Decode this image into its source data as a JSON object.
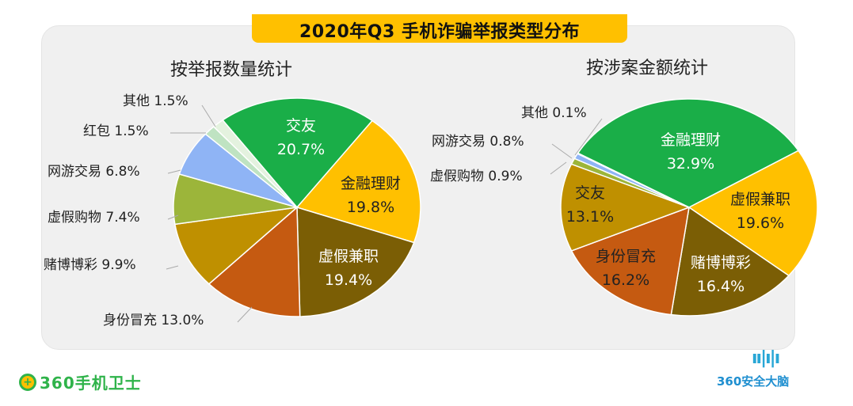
{
  "title": "2020年Q3 手机诈骗举报类型分布",
  "logos": {
    "left": "360手机卫士",
    "right": "360安全大脑",
    "right_icon": "ıı|ı|ı"
  },
  "chart_data": [
    {
      "type": "pie",
      "title": "按举报数量统计",
      "unit": "%",
      "slices": [
        {
          "name": "交友",
          "value": 20.7,
          "label": "20.7%",
          "color": "#1aae48"
        },
        {
          "name": "金融理财",
          "value": 19.8,
          "label": "19.8%",
          "color": "#ffc000"
        },
        {
          "name": "虚假兼职",
          "value": 19.4,
          "label": "19.4%",
          "color": "#7b5e05"
        },
        {
          "name": "身份冒充",
          "value": 13.0,
          "label": "13.0%",
          "color": "#c55a11"
        },
        {
          "name": "赌博博彩",
          "value": 9.9,
          "label": "9.9%",
          "color": "#bf9000"
        },
        {
          "name": "虚假购物",
          "value": 7.4,
          "label": "7.4%",
          "color": "#9cb53a"
        },
        {
          "name": "网游交易",
          "value": 6.8,
          "label": "6.8%",
          "color": "#8fb4f5"
        },
        {
          "name": "红包",
          "value": 1.5,
          "label": "1.5%",
          "color": "#bfe3c2"
        },
        {
          "name": "其他",
          "value": 1.5,
          "label": "1.5%",
          "color": "#e4f2df"
        }
      ]
    },
    {
      "type": "pie",
      "title": "按涉案金额统计",
      "unit": "%",
      "slices": [
        {
          "name": "金融理财",
          "value": 32.9,
          "label": "32.9%",
          "color": "#1aae48"
        },
        {
          "name": "虚假兼职",
          "value": 19.6,
          "label": "19.6%",
          "color": "#ffc000"
        },
        {
          "name": "赌博博彩",
          "value": 16.4,
          "label": "16.4%",
          "color": "#7b5e05"
        },
        {
          "name": "身份冒充",
          "value": 16.2,
          "label": "16.2%",
          "color": "#c55a11"
        },
        {
          "name": "交友",
          "value": 13.1,
          "label": "13.1%",
          "color": "#bf9000"
        },
        {
          "name": "虚假购物",
          "value": 0.9,
          "label": "0.9%",
          "color": "#9cb53a"
        },
        {
          "name": "网游交易",
          "value": 0.8,
          "label": "0.8%",
          "color": "#8fb4f5"
        },
        {
          "name": "其他",
          "value": 0.1,
          "label": "0.1%",
          "color": "#bfe3c2"
        }
      ]
    }
  ]
}
